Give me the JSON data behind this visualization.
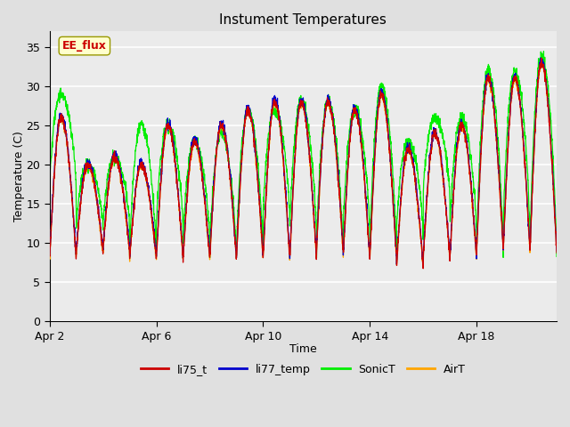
{
  "title": "Instument Temperatures",
  "xlabel": "Time",
  "ylabel": "Temperature (C)",
  "ylim": [
    0,
    37
  ],
  "yticks": [
    0,
    5,
    10,
    15,
    20,
    25,
    30,
    35
  ],
  "date_labels": [
    "Apr 2",
    "Apr 6",
    "Apr 10",
    "Apr 14",
    "Apr 18"
  ],
  "date_positions": [
    0,
    4,
    8,
    12,
    16
  ],
  "colors": {
    "li75_t": "#cc0000",
    "li77_temp": "#0000cc",
    "SonicT": "#00ee00",
    "AirT": "#ffa500"
  },
  "legend_labels": [
    "li75_t",
    "li77_temp",
    "SonicT",
    "AirT"
  ],
  "annotation_text": "EE_flux",
  "annotation_box_color": "#ffffcc",
  "annotation_box_edge": "#999900",
  "annotation_text_color": "#cc0000",
  "bg_color": "#e0e0e0",
  "plot_bg_color": "#ebebeb",
  "grid_color": "#ffffff",
  "n_days": 19,
  "points_per_day": 144
}
